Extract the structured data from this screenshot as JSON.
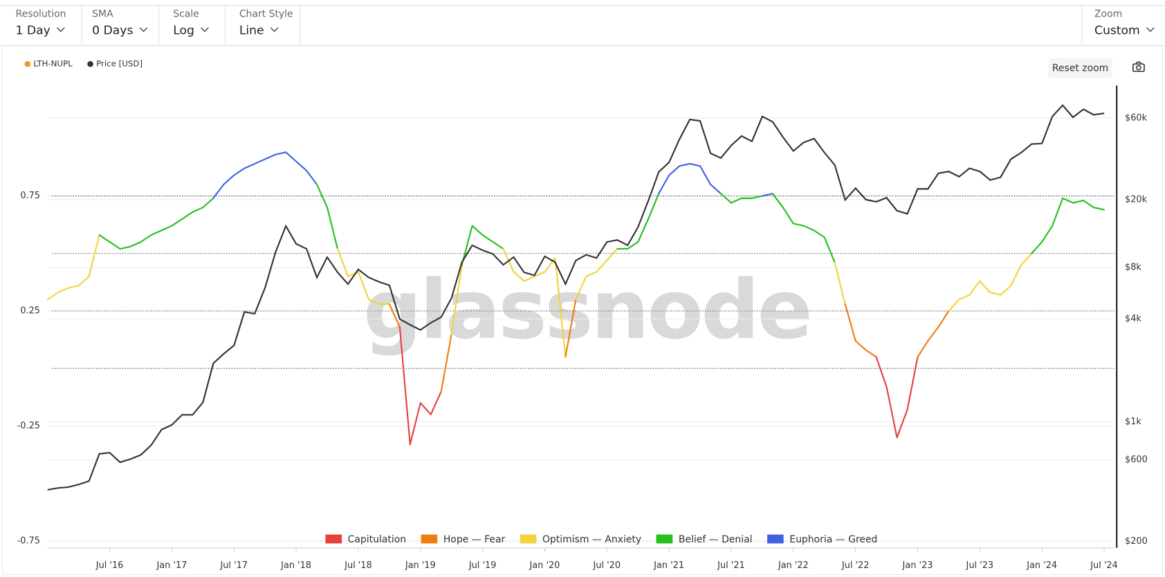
{
  "toolbar": {
    "controls": [
      {
        "label": "Resolution",
        "value": "1 Day"
      },
      {
        "label": "SMA",
        "value": "0 Days"
      },
      {
        "label": "Scale",
        "value": "Log"
      },
      {
        "label": "Chart Style",
        "value": "Line"
      }
    ],
    "zoom": {
      "label": "Zoom",
      "value": "Custom"
    },
    "reset_zoom": "Reset zoom"
  },
  "chart_data": {
    "type": "line",
    "watermark": "glassnode",
    "x": [
      "2016-01",
      "2016-02",
      "2016-03",
      "2016-04",
      "2016-05",
      "2016-06",
      "2016-07",
      "2016-08",
      "2016-09",
      "2016-10",
      "2016-11",
      "2016-12",
      "2017-01",
      "2017-02",
      "2017-03",
      "2017-04",
      "2017-05",
      "2017-06",
      "2017-07",
      "2017-08",
      "2017-09",
      "2017-10",
      "2017-11",
      "2017-12",
      "2018-01",
      "2018-02",
      "2018-03",
      "2018-04",
      "2018-05",
      "2018-06",
      "2018-07",
      "2018-08",
      "2018-09",
      "2018-10",
      "2018-11",
      "2018-12",
      "2019-01",
      "2019-02",
      "2019-03",
      "2019-04",
      "2019-05",
      "2019-06",
      "2019-07",
      "2019-08",
      "2019-09",
      "2019-10",
      "2019-11",
      "2019-12",
      "2020-01",
      "2020-02",
      "2020-03",
      "2020-04",
      "2020-05",
      "2020-06",
      "2020-07",
      "2020-08",
      "2020-09",
      "2020-10",
      "2020-11",
      "2020-12",
      "2021-01",
      "2021-02",
      "2021-03",
      "2021-04",
      "2021-05",
      "2021-06",
      "2021-07",
      "2021-08",
      "2021-09",
      "2021-10",
      "2021-11",
      "2021-12",
      "2022-01",
      "2022-02",
      "2022-03",
      "2022-04",
      "2022-05",
      "2022-06",
      "2022-07",
      "2022-08",
      "2022-09",
      "2022-10",
      "2022-11",
      "2022-12",
      "2023-01",
      "2023-02",
      "2023-03",
      "2023-04",
      "2023-05",
      "2023-06",
      "2023-07",
      "2023-08",
      "2023-09",
      "2023-10",
      "2023-11",
      "2023-12",
      "2024-01",
      "2024-02",
      "2024-03",
      "2024-04",
      "2024-05",
      "2024-06",
      "2024-07"
    ],
    "series": [
      {
        "name": "LTH-NUPL",
        "color": "#f7931a",
        "values": [
          0.3,
          0.33,
          0.35,
          0.36,
          0.4,
          0.58,
          0.55,
          0.52,
          0.53,
          0.55,
          0.58,
          0.6,
          0.62,
          0.65,
          0.68,
          0.7,
          0.74,
          0.8,
          0.84,
          0.87,
          0.89,
          0.91,
          0.93,
          0.94,
          0.9,
          0.86,
          0.8,
          0.7,
          0.52,
          0.4,
          0.42,
          0.3,
          0.28,
          0.28,
          0.18,
          -0.33,
          -0.15,
          -0.2,
          -0.1,
          0.15,
          0.45,
          0.62,
          0.58,
          0.55,
          0.52,
          0.42,
          0.38,
          0.4,
          0.42,
          0.48,
          0.05,
          0.3,
          0.4,
          0.42,
          0.47,
          0.52,
          0.52,
          0.55,
          0.65,
          0.76,
          0.84,
          0.88,
          0.89,
          0.88,
          0.8,
          0.76,
          0.72,
          0.74,
          0.74,
          0.75,
          0.76,
          0.7,
          0.63,
          0.62,
          0.6,
          0.57,
          0.46,
          0.28,
          0.12,
          0.08,
          0.05,
          -0.08,
          -0.3,
          -0.18,
          0.05,
          0.12,
          0.18,
          0.25,
          0.3,
          0.32,
          0.38,
          0.33,
          0.32,
          0.36,
          0.45,
          0.5,
          0.55,
          0.62,
          0.74,
          0.72,
          0.73,
          0.7,
          0.69
        ]
      },
      {
        "name": "Price [USD]",
        "color": "#333333",
        "axis": "y2",
        "values": [
          400,
          410,
          415,
          430,
          450,
          650,
          660,
          580,
          605,
          640,
          730,
          900,
          960,
          1100,
          1100,
          1300,
          2200,
          2500,
          2800,
          4400,
          4300,
          6100,
          9800,
          14000,
          11000,
          10300,
          7000,
          9200,
          7500,
          6400,
          7800,
          7000,
          6600,
          6300,
          4000,
          3700,
          3450,
          3800,
          4100,
          5300,
          8600,
          10800,
          10100,
          9600,
          8300,
          9200,
          7500,
          7200,
          9300,
          8600,
          6400,
          8800,
          9500,
          9100,
          11300,
          11600,
          10800,
          13800,
          19700,
          29000,
          33000,
          45000,
          58800,
          57700,
          37300,
          35000,
          41500,
          47100,
          43800,
          61300,
          57000,
          46300,
          38500,
          43200,
          45500,
          37700,
          31800,
          19900,
          23300,
          20000,
          19400,
          20500,
          17200,
          16500,
          23100,
          23100,
          28500,
          29200,
          27200,
          30500,
          29200,
          26000,
          27000,
          34500,
          37700,
          42300,
          42600,
          61200,
          71300,
          60600,
          67500,
          62700,
          64000
        ]
      }
    ],
    "zones": [
      {
        "name": "Capitulation",
        "color": "#e8403e",
        "max": 0
      },
      {
        "name": "Hope — Fear",
        "color": "#f07d0f",
        "max": 0.25
      },
      {
        "name": "Optimism — Anxiety",
        "color": "#f2d43c",
        "max": 0.5
      },
      {
        "name": "Belief — Denial",
        "color": "#27c01c",
        "max": 0.75
      },
      {
        "name": "Euphoria — Greed",
        "color": "#4062e2",
        "max": null
      }
    ],
    "xlim": [
      "2016-01",
      "2024-08"
    ],
    "xticks": [
      {
        "value": "2016-07",
        "label": "Jul '16"
      },
      {
        "value": "2017-01",
        "label": "Jan '17"
      },
      {
        "value": "2017-07",
        "label": "Jul '17"
      },
      {
        "value": "2018-01",
        "label": "Jan '18"
      },
      {
        "value": "2018-07",
        "label": "Jul '18"
      },
      {
        "value": "2019-01",
        "label": "Jan '19"
      },
      {
        "value": "2019-07",
        "label": "Jul '19"
      },
      {
        "value": "2020-01",
        "label": "Jan '20"
      },
      {
        "value": "2020-07",
        "label": "Jul '20"
      },
      {
        "value": "2021-01",
        "label": "Jan '21"
      },
      {
        "value": "2021-07",
        "label": "Jul '21"
      },
      {
        "value": "2022-01",
        "label": "Jan '22"
      },
      {
        "value": "2022-07",
        "label": "Jul '22"
      },
      {
        "value": "2023-01",
        "label": "Jan '23"
      },
      {
        "value": "2023-07",
        "label": "Jul '23"
      },
      {
        "value": "2024-01",
        "label": "Jan '24"
      },
      {
        "value": "2024-07",
        "label": "Jul '24"
      }
    ],
    "ylim": [
      -0.78,
      1.23
    ],
    "yticks": [
      0.75,
      0.25,
      -0.25,
      -0.75
    ],
    "y2lim": [
      183,
      93000
    ],
    "y2scale": "log",
    "y2ticks": [
      {
        "value": 60000,
        "label": "$60k"
      },
      {
        "value": 20000,
        "label": "$20k"
      },
      {
        "value": 8000,
        "label": "$8k"
      },
      {
        "value": 4000,
        "label": "$4k"
      },
      {
        "value": 1000,
        "label": "$1k"
      },
      {
        "value": 600,
        "label": "$600"
      },
      {
        "value": 200,
        "label": "$200"
      }
    ],
    "grid": true
  }
}
